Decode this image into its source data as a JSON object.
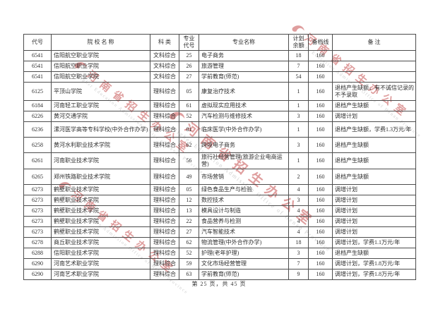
{
  "table": {
    "headers": [
      "代号",
      "院  校  名  称",
      "科  类",
      "专业代号",
      "专业名称",
      "计划余额",
      "备档线",
      "备  注"
    ],
    "rows": [
      [
        "6541",
        "信阳航空职业学院",
        "文科综合",
        "25",
        "电子商务",
        "18",
        "160",
        ""
      ],
      [
        "6541",
        "信阳航空职业学院",
        "文科综合",
        "26",
        "旅游管理",
        "7",
        "160",
        ""
      ],
      [
        "6541",
        "信阳航空职业学院",
        "文科综合",
        "27",
        "学前教育(师范)",
        "54",
        "160",
        ""
      ],
      [
        "6125",
        "平顶山学院",
        "理科综合",
        "05",
        "康复治疗技术",
        "1",
        "160",
        "退档产生缺额，有不诚信记录的不予录取"
      ],
      [
        "6184",
        "河南轻工职业学院",
        "理科综合",
        "61",
        "虚拟现实应用技术",
        "1",
        "160",
        "退档产生缺额"
      ],
      [
        "6226",
        "黄河交通学院",
        "理科综合",
        "52",
        "汽车检测与维修技术",
        "3",
        "160",
        "调增计划"
      ],
      [
        "6236",
        "漯河医学高等专科学校(中外合作办学)",
        "理科综合",
        "01",
        "临床医学(中外合作办学)",
        "1",
        "160",
        "退档产生缺额，学费1.3万元/年"
      ],
      [
        "6258",
        "黄河水利职业技术学院",
        "理科综合",
        "62",
        "跨境电子商务",
        "3",
        "160",
        "退档产生缺额"
      ],
      [
        "6261",
        "河南职业技术学院",
        "理科综合",
        "56",
        "旅行社经营管理(旅游企业电商运营)",
        "1",
        "160",
        "退档产生缺额"
      ],
      [
        "6265",
        "郑州铁路职业技术学院",
        "理科综合",
        "49",
        "市场营销",
        "2",
        "160",
        "退档产生缺额"
      ],
      [
        "6273",
        "鹤壁职业技术学院",
        "理科综合",
        "05",
        "绿色食品生产与检验",
        "4",
        "160",
        "调增计划"
      ],
      [
        "6273",
        "鹤壁职业技术学院",
        "理科综合",
        "12",
        "数控技术",
        "3",
        "160",
        "调增计划"
      ],
      [
        "6273",
        "鹤壁职业技术学院",
        "理科综合",
        "13",
        "模具设计与制造",
        "4",
        "160",
        "调增计划"
      ],
      [
        "6273",
        "鹤壁职业技术学院",
        "理科综合",
        "22",
        "食品营养与检测",
        "4",
        "160",
        "调增计划"
      ],
      [
        "6273",
        "鹤壁职业技术学院",
        "理科综合",
        "27",
        "汽车智能技术",
        "4",
        "160",
        "调增计划"
      ],
      [
        "6278",
        "商丘职业技术学院",
        "理科综合",
        "62",
        "物流管理(中外合作办学)",
        "18",
        "160",
        "调增计划，学费1.1万元/年"
      ],
      [
        "6288",
        "信阳职业技术学院",
        "理科综合",
        "52",
        "护理(老年护理)",
        "3",
        "160",
        "退档产生缺额"
      ],
      [
        "6290",
        "河南艺术职业学院",
        "理科综合",
        "59",
        "文化市场经营管理",
        "7",
        "160",
        "调增计划，学费1.8万元/年"
      ],
      [
        "6290",
        "河南艺术职业学院",
        "理科综合",
        "63",
        "学前教育(师范)",
        "9",
        "160",
        "调增计划，学费1.8万元/年"
      ]
    ]
  },
  "watermark": {
    "cn": "河南省招生办公室",
    "en": "Higher Education Admission Office of Henan Province"
  },
  "footer": {
    "page_info": "第 25 页，共 45 页"
  },
  "colors": {
    "table_text": "#2f2f2f",
    "table_border": "#4d4d4d",
    "watermark_red": "#c65050",
    "watermark_gray": "#a9a9a9",
    "page_background": "#ffffff"
  }
}
